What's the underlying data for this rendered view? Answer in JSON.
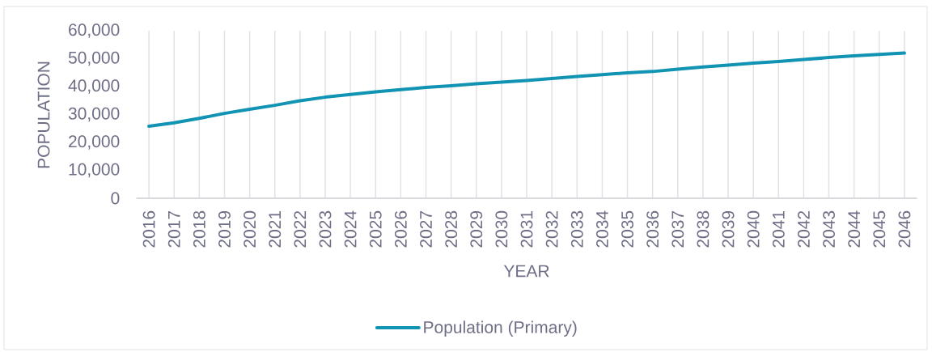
{
  "chart_data": {
    "type": "line",
    "xlabel": "YEAR",
    "ylabel": "POPULATION",
    "categories": [
      "2016",
      "2017",
      "2018",
      "2019",
      "2020",
      "2021",
      "2022",
      "2023",
      "2024",
      "2025",
      "2026",
      "2027",
      "2028",
      "2029",
      "2030",
      "2031",
      "2032",
      "2033",
      "2034",
      "2035",
      "2036",
      "2037",
      "2038",
      "2039",
      "2040",
      "2041",
      "2042",
      "2043",
      "2044",
      "2045",
      "2046"
    ],
    "series": [
      {
        "name": "Population (Primary)",
        "color": "#1193b3",
        "values": [
          25800,
          27000,
          28600,
          30400,
          31900,
          33300,
          34900,
          36200,
          37200,
          38100,
          38900,
          39700,
          40300,
          41000,
          41600,
          42200,
          42900,
          43600,
          44300,
          44900,
          45400,
          46200,
          47000,
          47700,
          48400,
          49000,
          49700,
          50400,
          51000,
          51500,
          52000
        ]
      }
    ],
    "ylim": [
      0,
      60000
    ],
    "yticks": [
      {
        "value": 0,
        "label": "0"
      },
      {
        "value": 10000,
        "label": "10,000"
      },
      {
        "value": 20000,
        "label": "20,000"
      },
      {
        "value": 30000,
        "label": "30,000"
      },
      {
        "value": 40000,
        "label": "40,000"
      },
      {
        "value": 50000,
        "label": "50,000"
      },
      {
        "value": 60000,
        "label": "60,000"
      }
    ],
    "grid": "x",
    "legend": "bottom",
    "marker": "none",
    "line_style": "solid"
  }
}
